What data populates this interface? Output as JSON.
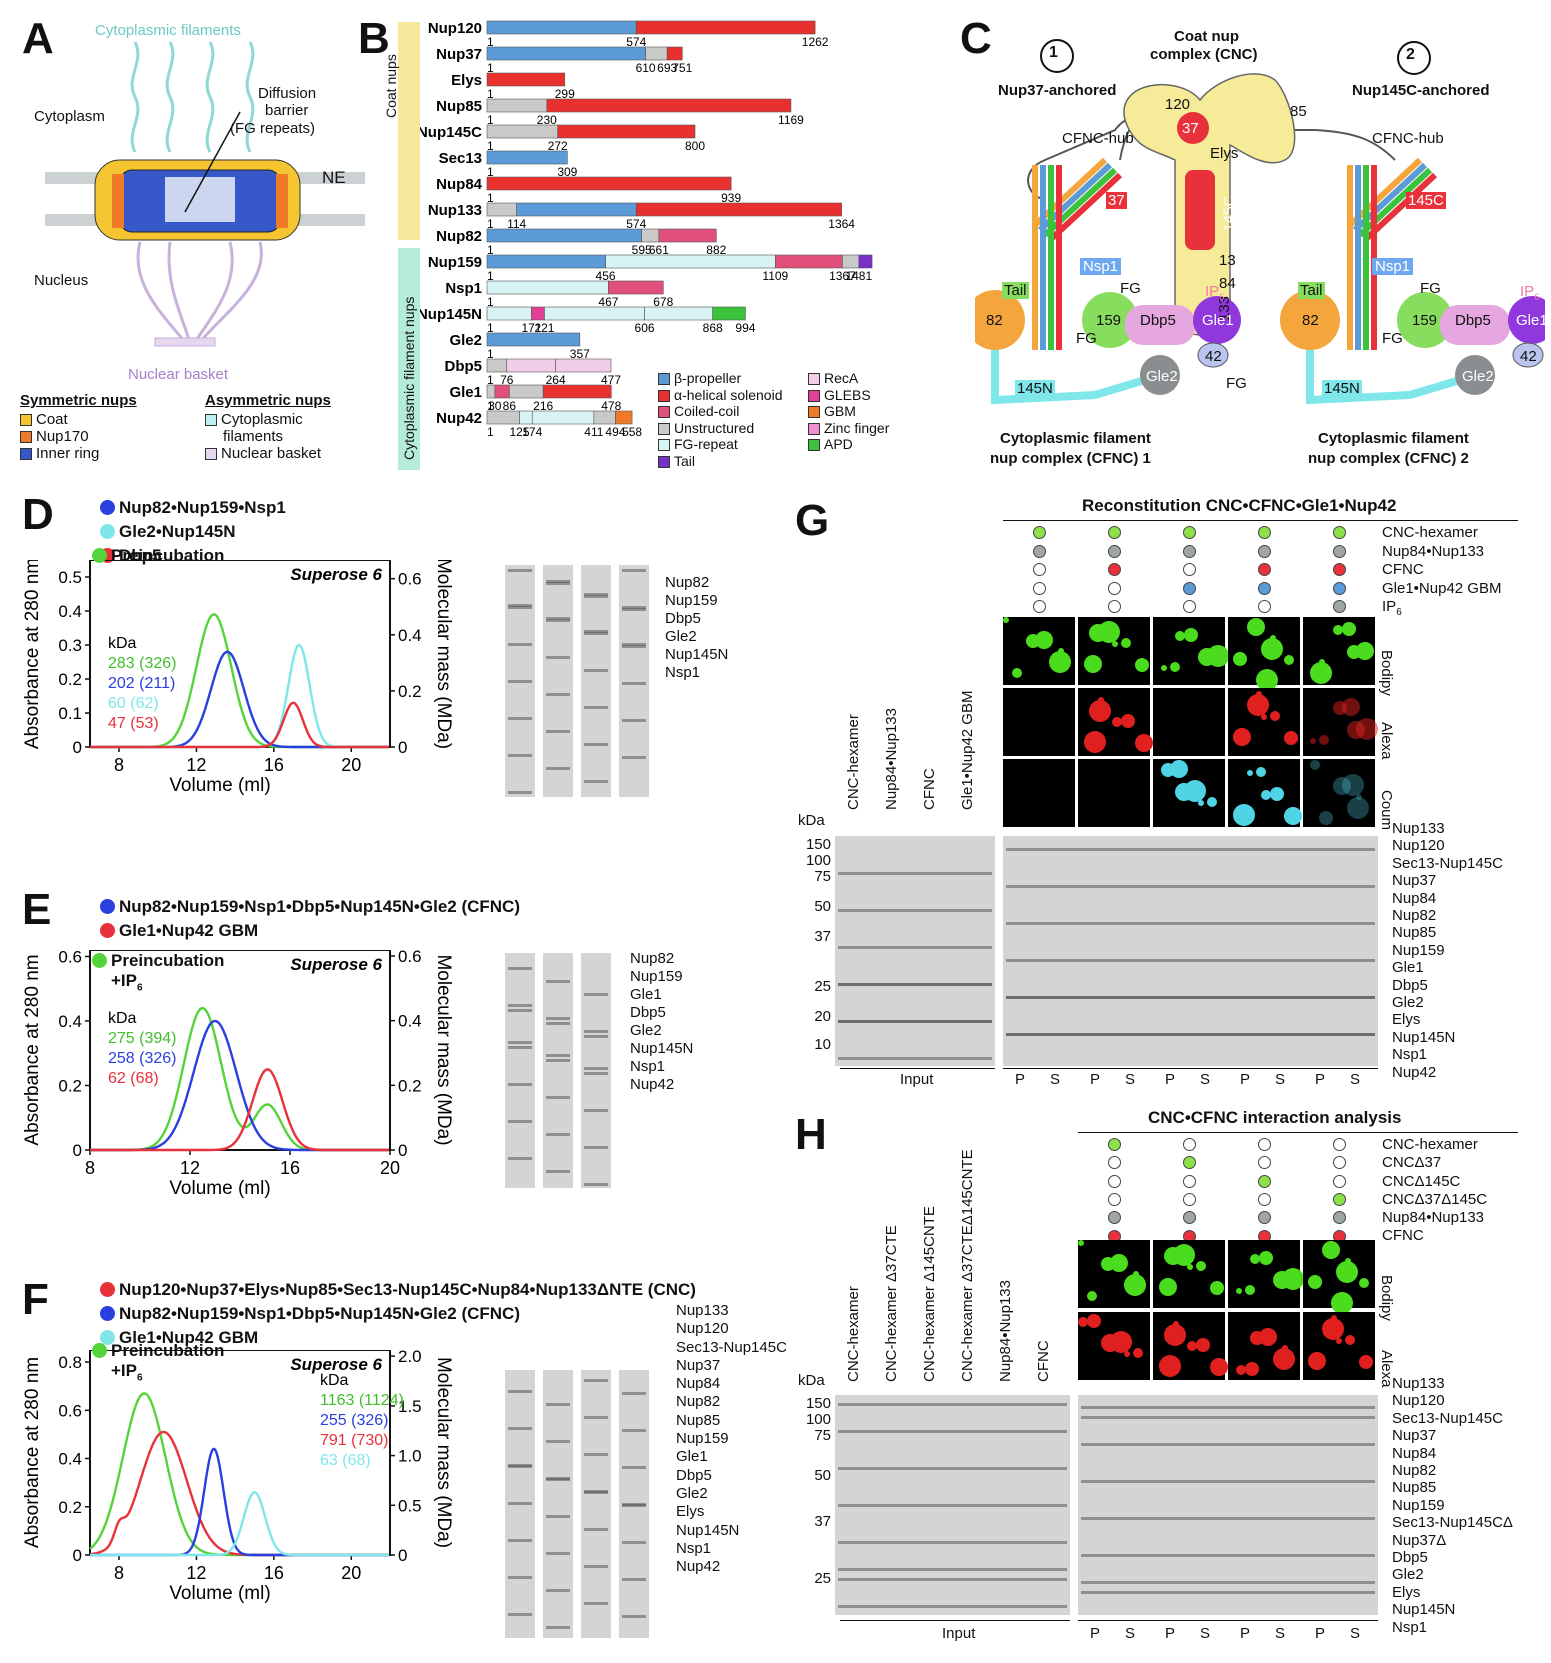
{
  "panels": {
    "a": "A",
    "b": "B",
    "c": "C",
    "d": "D",
    "e": "E",
    "f": "F",
    "g": "G",
    "h": "H"
  },
  "panelA": {
    "cyto_filaments": "Cytoplasmic filaments",
    "cytoplasm": "Cytoplasm",
    "diffusion": "Diffusion",
    "barrier": "barrier",
    "fg": "(FG repeats)",
    "ne": "NE",
    "nucleus": "Nucleus",
    "basket": "Nuclear basket",
    "sym_title": "Symmetric nups",
    "asym_title": "Asymmetric nups",
    "sym": [
      {
        "label": "Coat",
        "color": "#f4c531"
      },
      {
        "label": "Nup170",
        "color": "#ee7a2a"
      },
      {
        "label": "Inner ring",
        "color": "#3658c8"
      }
    ],
    "asym": [
      {
        "label": "Cytoplasmic",
        "label2": "filaments",
        "color": "#bfeef0"
      },
      {
        "label": "Nuclear basket",
        "label2": "",
        "color": "#e6d7ef"
      }
    ]
  },
  "panelB": {
    "group1": "Coat nups",
    "group2": "Cytoplasmic filament nups",
    "rows": [
      {
        "name": "Nup120",
        "nums": [
          "1",
          "574",
          "1262"
        ]
      },
      {
        "name": "Nup37",
        "nums": [
          "1",
          "610",
          "693",
          "751"
        ]
      },
      {
        "name": "Elys",
        "nums": [
          "1",
          "299"
        ]
      },
      {
        "name": "Nup85",
        "nums": [
          "1",
          "230",
          "1169"
        ]
      },
      {
        "name": "Nup145C",
        "nums": [
          "1",
          "272",
          "800"
        ]
      },
      {
        "name": "Sec13",
        "nums": [
          "1",
          "309"
        ]
      },
      {
        "name": "Nup84",
        "nums": [
          "1",
          "939"
        ]
      },
      {
        "name": "Nup133",
        "nums": [
          "1",
          "114",
          "574",
          "1364"
        ]
      },
      {
        "name": "Nup82",
        "nums": [
          "1",
          "595",
          "661",
          "882"
        ]
      },
      {
        "name": "Nup159",
        "nums": [
          "1",
          "456",
          "1109",
          "1367",
          "1481"
        ]
      },
      {
        "name": "Nsp1",
        "nums": [
          "1",
          "467",
          "678"
        ]
      },
      {
        "name": "Nup145N",
        "nums": [
          "1",
          "171",
          "221",
          "606",
          "868",
          "994"
        ]
      },
      {
        "name": "Gle2",
        "nums": [
          "1",
          "357"
        ]
      },
      {
        "name": "Dbp5",
        "nums": [
          "1",
          "76",
          "264",
          "477"
        ]
      },
      {
        "name": "Gle1",
        "nums": [
          "1",
          "30",
          "86",
          "216",
          "478"
        ]
      },
      {
        "name": "Nup42",
        "nums": [
          "1",
          "125",
          "174",
          "411",
          "494",
          "558"
        ]
      }
    ],
    "legend": [
      {
        "label": "β-propeller",
        "color": "#5b9bd8"
      },
      {
        "label": "α-helical solenoid",
        "color": "#e8312f"
      },
      {
        "label": "Coiled-coil",
        "color": "#e0507a"
      },
      {
        "label": "Unstructured",
        "color": "#c9c9c9"
      },
      {
        "label": "FG-repeat",
        "color": "#d8f3f3"
      },
      {
        "label": "Tail",
        "color": "#7a2fc7"
      },
      {
        "label": "RecA",
        "color": "#f1cdea"
      },
      {
        "label": "GLEBS",
        "color": "#e23f98"
      },
      {
        "label": "GBM",
        "color": "#ee7a2a"
      },
      {
        "label": "Zinc finger",
        "color": "#f08fd0"
      },
      {
        "label": "APD",
        "color": "#3cc33c"
      }
    ]
  },
  "panelC": {
    "anchor1": "Nup37-anchored",
    "anchor2": "Nup145C-anchored",
    "num1": "1",
    "num2": "2",
    "cnc_title": "Coat nup",
    "cnc_title2": "complex (CNC)",
    "hub": "CFNC-hub",
    "cnc": {
      "n120": "120",
      "n37": "37",
      "n85": "85",
      "elys": "Elys",
      "n145c": "145C",
      "n13": "13",
      "n84": "84",
      "n133": "133"
    },
    "tag37": "37",
    "tag145c": "145C",
    "nsp1": "Nsp1",
    "tail": "Tail",
    "n82": "82",
    "n159": "159",
    "dbp5": "Dbp5",
    "gle1": "Gle1",
    "n42": "42",
    "ip": "IP",
    "ip_sub": "6",
    "fg": "FG",
    "n145n": "145N",
    "gle2": "Gle2",
    "cfnc1": "Cytoplasmic filament",
    "cfnc1b": "nup complex (CFNC) 1",
    "cfnc2": "Cytoplasmic filament",
    "cfnc2b": "nup complex (CFNC) 2"
  },
  "panelD": {
    "legend": [
      {
        "label": "Nup82•Nup159•Nsp1",
        "color": "#2a3fe0"
      },
      {
        "label": "Gle2•Nup145N",
        "color": "#7fe6ea"
      },
      {
        "label": "Dbp5",
        "color": "#e8313a"
      },
      {
        "label": "Preincubation",
        "color": "#55d43a"
      }
    ],
    "column": "Superose 6",
    "ylabel": "Absorbance at 280 nm",
    "y2label": "Molecular mass (MDa)",
    "xlabel": "Volume (ml)",
    "kda": "kDa",
    "masses": [
      {
        "text": "283 (326)",
        "color": "#3fbf2a"
      },
      {
        "text": "202 (211)",
        "color": "#2a3fe0"
      },
      {
        "text": "60 (62)",
        "color": "#7fe6ea"
      },
      {
        "text": "47 (53)",
        "color": "#e8313a"
      }
    ],
    "yticks": [
      "0",
      "0.1",
      "0.2",
      "0.3",
      "0.4",
      "0.5"
    ],
    "y2ticks": [
      "0",
      "0.2",
      "0.4",
      "0.6"
    ],
    "xticks": [
      "8",
      "12",
      "16",
      "20"
    ],
    "gel_labels": [
      "Nup82",
      "Nup159",
      "Dbp5",
      "Gle2",
      "Nup145N",
      "Nsp1"
    ]
  },
  "panelE": {
    "legend": [
      {
        "label": "Nup82•Nup159•Nsp1•Dbp5•Nup145N•Gle2 (CFNC)",
        "color": "#2a3fe0"
      },
      {
        "label": "Gle1•Nup42 GBM",
        "color": "#e8313a"
      },
      {
        "label": "Preincubation",
        "color": "#55d43a"
      }
    ],
    "ip": "+IP",
    "ip_sub": "6",
    "column": "Superose 6",
    "ylabel": "Absorbance at 280 nm",
    "y2label": "Molecular mass (MDa)",
    "xlabel": "Volume (ml)",
    "kda": "kDa",
    "masses": [
      {
        "text": "275 (394)",
        "color": "#3fbf2a"
      },
      {
        "text": "258 (326)",
        "color": "#2a3fe0"
      },
      {
        "text": "62 (68)",
        "color": "#e8313a"
      }
    ],
    "yticks": [
      "0",
      "0.2",
      "0.4",
      "0.6"
    ],
    "y2ticks": [
      "0",
      "0.2",
      "0.4",
      "0.6"
    ],
    "xticks": [
      "8",
      "12",
      "16",
      "20"
    ],
    "gel_labels": [
      "Nup82",
      "Nup159",
      "Gle1",
      "Dbp5",
      "Gle2",
      "Nup145N",
      "Nsp1",
      "Nup42"
    ]
  },
  "panelF": {
    "legend": [
      {
        "label": "Nup120•Nup37•Elys•Nup85•Sec13-Nup145C•Nup84•Nup133ΔNTE (CNC)",
        "color": "#e8313a"
      },
      {
        "label": "Nup82•Nup159•Nsp1•Dbp5•Nup145N•Gle2 (CFNC)",
        "color": "#2a3fe0"
      },
      {
        "label": "Gle1•Nup42 GBM",
        "color": "#7fe6ea"
      },
      {
        "label": "Preincubation",
        "color": "#55d43a"
      }
    ],
    "ip": "+IP",
    "ip_sub": "6",
    "column": "Superose 6",
    "ylabel": "Absorbance at 280 nm",
    "y2label": "Molecular mass (MDa)",
    "xlabel": "Volume (ml)",
    "kda": "kDa",
    "masses": [
      {
        "text": "1163 (1124)",
        "color": "#3fbf2a"
      },
      {
        "text": "255 (326)",
        "color": "#2a3fe0"
      },
      {
        "text": "791 (730)",
        "color": "#e8313a"
      },
      {
        "text": "63 (68)",
        "color": "#7fe6ea"
      }
    ],
    "yticks": [
      "0",
      "0.2",
      "0.4",
      "0.6",
      "0.8"
    ],
    "y2ticks": [
      "0",
      "0.5",
      "1.0",
      "1.5",
      "2.0"
    ],
    "xticks": [
      "8",
      "12",
      "16",
      "20"
    ],
    "gel_labels": [
      "Nup133",
      "Nup120",
      "Sec13-Nup145C",
      "Nup37",
      "Nup84",
      "Nup82",
      "Nup85",
      "Nup159",
      "Gle1",
      "Dbp5",
      "Gle2",
      "Elys",
      "Nup145N",
      "Nsp1",
      "Nup42"
    ]
  },
  "panelG": {
    "title": "Reconstitution CNC•CFNC•Gle1•Nup42",
    "rows": [
      "CNC-hexamer",
      "Nup84•Nup133",
      "CFNC",
      "Gle1•Nup42 GBM",
      "IP"
    ],
    "ip_sub": "6",
    "channels": [
      "Bodipy",
      "Alexa",
      "Coum"
    ],
    "kda": "kDa",
    "mw": [
      "150",
      "100",
      "75",
      "50",
      "37",
      "25",
      "20",
      "10"
    ],
    "lanes": [
      "CNC-hexamer",
      "Nup84•Nup133",
      "CFNC",
      "Gle1•Nup42 GBM"
    ],
    "input": "Input",
    "p": "P",
    "s": "S",
    "gel_labels": [
      "Nup133",
      "Nup120",
      "Sec13-Nup145C",
      "Nup37",
      "Nup84",
      "Nup82",
      "Nup85",
      "Nup159",
      "Gle1",
      "Dbp5",
      "Gle2",
      "Elys",
      "Nup145N",
      "Nsp1",
      "Nup42"
    ]
  },
  "panelH": {
    "title": "CNC•CFNC interaction analysis",
    "rows": [
      "CNC-hexamer",
      "CNCΔ37",
      "CNCΔ145C",
      "CNCΔ37Δ145C",
      "Nup84•Nup133",
      "CFNC"
    ],
    "channels": [
      "Bodipy",
      "Alexa"
    ],
    "kda": "kDa",
    "mw": [
      "150",
      "100",
      "75",
      "50",
      "37",
      "25"
    ],
    "lanes": [
      "CNC-hexamer",
      "CNC-hexamer Δ37CTE",
      "CNC-hexamer Δ145CNTE",
      "CNC-hexamer Δ37CTEΔ145CNTE",
      "Nup84•Nup133",
      "CFNC"
    ],
    "input": "Input",
    "p": "P",
    "s": "S",
    "gel_labels": [
      "Nup133",
      "Nup120",
      "Sec13-Nup145C",
      "Nup37",
      "Nup84",
      "Nup82",
      "Nup85",
      "Nup159",
      "Sec13-Nup145CΔ",
      "Nup37Δ",
      "Dbp5",
      "Gle2",
      "Elys",
      "Nup145N",
      "Nsp1"
    ]
  },
  "chart_data": [
    {
      "type": "line",
      "panel": "D",
      "xlabel": "Volume (ml)",
      "ylabel": "Absorbance at 280 nm",
      "xlim": [
        6.5,
        22
      ],
      "ylim": [
        0,
        0.55
      ],
      "series": [
        {
          "color": "#55d43a",
          "peak_x": 12.9,
          "peak_y": 0.39
        },
        {
          "color": "#2a3fe0",
          "peak_x": 13.6,
          "peak_y": 0.28
        },
        {
          "color": "#7fe6ea",
          "peak_x": 17.3,
          "peak_y": 0.3
        },
        {
          "color": "#e8313a",
          "peak_x": 17.0,
          "peak_y": 0.13
        }
      ]
    },
    {
      "type": "line",
      "panel": "E",
      "xlabel": "Volume (ml)",
      "ylabel": "Absorbance at 280 nm",
      "xlim": [
        8,
        20
      ],
      "ylim": [
        0,
        0.62
      ],
      "series": [
        {
          "color": "#55d43a",
          "peak_x": 12.5,
          "peak_y": 0.44
        },
        {
          "color": "#2a3fe0",
          "peak_x": 13.0,
          "peak_y": 0.4
        },
        {
          "color": "#e8313a",
          "peak_x": 15.1,
          "peak_y": 0.25
        }
      ]
    },
    {
      "type": "line",
      "panel": "F",
      "xlabel": "Volume (ml)",
      "ylabel": "Absorbance at 280 nm",
      "xlim": [
        6.5,
        22
      ],
      "ylim": [
        0,
        0.85
      ],
      "series": [
        {
          "color": "#55d43a",
          "peak_x": 9.3,
          "peak_y": 0.67
        },
        {
          "color": "#e8313a",
          "peak_x": 10.3,
          "peak_y": 0.51
        },
        {
          "color": "#2a3fe0",
          "peak_x": 12.9,
          "peak_y": 0.44
        },
        {
          "color": "#7fe6ea",
          "peak_x": 15.0,
          "peak_y": 0.26
        }
      ]
    }
  ]
}
